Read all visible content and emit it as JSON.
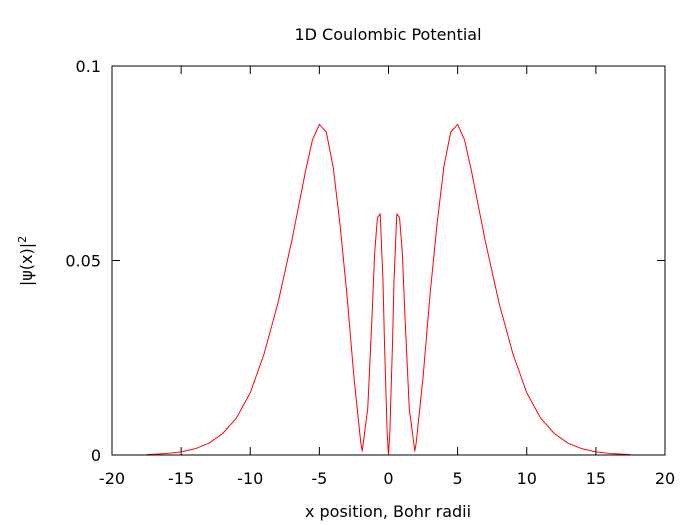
{
  "chart_data": {
    "type": "line",
    "title": "1D Coulombic Potential",
    "xlabel": "x position, Bohr radii",
    "ylabel": "|ψ(x)|",
    "ylabel_superscript": "2",
    "xlim": [
      -20,
      20
    ],
    "ylim": [
      0,
      0.1
    ],
    "x_ticks": [
      "-20",
      "-15",
      "-10",
      "-5",
      "0",
      "5",
      "10",
      "15",
      "20"
    ],
    "y_ticks": [
      "0",
      "0.05",
      "0.1"
    ],
    "grid": false,
    "legend": "none",
    "line_color": "#ff0000",
    "series": [
      {
        "x": [
          -17.5,
          -16,
          -15,
          -14,
          -13,
          -12,
          -11,
          -10,
          -9,
          -8,
          -7,
          -6.5,
          -6,
          -5.5,
          -5,
          -4.5,
          -4,
          -3.5,
          -3,
          -2.5,
          -2,
          -1.9,
          -1.5,
          -1.2,
          -1,
          -0.8,
          -0.6,
          -0.4,
          -0.3,
          -0.2,
          -0.1,
          0,
          0.1,
          0.2,
          0.3,
          0.4,
          0.6,
          0.8,
          1,
          1.2,
          1.5,
          1.9,
          2,
          2.5,
          3,
          3.5,
          4,
          4.5,
          5,
          5.5,
          6,
          6.5,
          7,
          8,
          9,
          10,
          11,
          12,
          13,
          14,
          15,
          16,
          17.5
        ],
        "y": [
          0.0001,
          0.0004,
          0.0008,
          0.0016,
          0.003,
          0.0055,
          0.0095,
          0.016,
          0.026,
          0.039,
          0.055,
          0.064,
          0.073,
          0.081,
          0.085,
          0.083,
          0.074,
          0.059,
          0.041,
          0.02,
          0.003,
          0.001,
          0.012,
          0.035,
          0.052,
          0.061,
          0.062,
          0.045,
          0.03,
          0.018,
          0.006,
          0.0,
          0.006,
          0.018,
          0.03,
          0.045,
          0.062,
          0.061,
          0.052,
          0.035,
          0.012,
          0.001,
          0.003,
          0.02,
          0.041,
          0.059,
          0.074,
          0.083,
          0.085,
          0.081,
          0.073,
          0.064,
          0.055,
          0.039,
          0.026,
          0.016,
          0.0095,
          0.0055,
          0.003,
          0.0016,
          0.0008,
          0.0004,
          0.0001
        ]
      }
    ]
  }
}
